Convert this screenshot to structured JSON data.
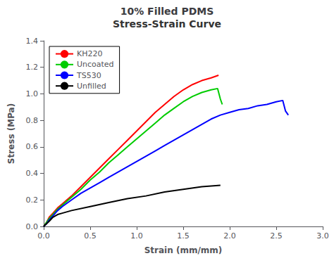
{
  "chart_data": {
    "type": "line",
    "title": "10% Filled PDMS",
    "subtitle": "Stress-Strain Curve",
    "xlabel": "Strain (mm/mm)",
    "ylabel": "Stress (MPa)",
    "xlim": [
      0,
      3.0
    ],
    "ylim": [
      0,
      1.4
    ],
    "xticks": [
      {
        "value": 0,
        "label": "0.0"
      },
      0.5,
      {
        "value": 1,
        "label": "1.0"
      },
      1.5,
      {
        "value": 2,
        "label": "2.0"
      },
      2.5,
      {
        "value": 3,
        "label": "3.0"
      }
    ],
    "yticks": [
      {
        "value": 0,
        "label": "0.0"
      },
      0.2,
      0.4,
      0.6,
      0.8,
      {
        "value": 1,
        "label": "1.0"
      },
      1.2,
      1.4
    ],
    "grid": false,
    "legend": "upper left",
    "series": [
      {
        "name": "KH220",
        "color": "#FF0000",
        "x": [
          0.0,
          0.03,
          0.06,
          0.1,
          0.15,
          0.2,
          0.3,
          0.4,
          0.5,
          0.6,
          0.7,
          0.8,
          0.9,
          1.0,
          1.1,
          1.2,
          1.3,
          1.4,
          1.5,
          1.6,
          1.7,
          1.8,
          1.88
        ],
        "values": [
          0.0,
          0.03,
          0.07,
          0.1,
          0.14,
          0.17,
          0.23,
          0.3,
          0.37,
          0.44,
          0.51,
          0.58,
          0.65,
          0.72,
          0.79,
          0.86,
          0.92,
          0.98,
          1.03,
          1.07,
          1.1,
          1.12,
          1.14
        ]
      },
      {
        "name": "Uncoated",
        "color": "#00CC00",
        "x": [
          0.0,
          0.03,
          0.06,
          0.1,
          0.15,
          0.2,
          0.3,
          0.4,
          0.5,
          0.6,
          0.7,
          0.8,
          0.9,
          1.0,
          1.1,
          1.2,
          1.3,
          1.4,
          1.5,
          1.6,
          1.7,
          1.8,
          1.87,
          1.9,
          1.92
        ],
        "values": [
          0.0,
          0.03,
          0.06,
          0.09,
          0.13,
          0.16,
          0.22,
          0.28,
          0.35,
          0.41,
          0.48,
          0.54,
          0.6,
          0.66,
          0.72,
          0.78,
          0.84,
          0.89,
          0.94,
          0.98,
          1.01,
          1.03,
          1.04,
          0.96,
          0.92
        ]
      },
      {
        "name": "TS530",
        "color": "#0000FF",
        "x": [
          0.0,
          0.03,
          0.06,
          0.1,
          0.15,
          0.2,
          0.3,
          0.4,
          0.5,
          0.6,
          0.7,
          0.8,
          0.9,
          1.0,
          1.1,
          1.2,
          1.3,
          1.4,
          1.5,
          1.6,
          1.7,
          1.8,
          1.9,
          2.0,
          2.1,
          2.2,
          2.3,
          2.4,
          2.5,
          2.57,
          2.6,
          2.63
        ],
        "values": [
          0.0,
          0.02,
          0.05,
          0.08,
          0.12,
          0.15,
          0.2,
          0.25,
          0.29,
          0.33,
          0.37,
          0.41,
          0.45,
          0.49,
          0.53,
          0.57,
          0.61,
          0.65,
          0.69,
          0.73,
          0.77,
          0.81,
          0.84,
          0.86,
          0.88,
          0.89,
          0.91,
          0.92,
          0.94,
          0.95,
          0.87,
          0.84
        ]
      },
      {
        "name": "Unfilled",
        "color": "#000000",
        "x": [
          0.0,
          0.03,
          0.06,
          0.1,
          0.15,
          0.2,
          0.3,
          0.5,
          0.7,
          0.9,
          1.1,
          1.3,
          1.5,
          1.7,
          1.9
        ],
        "values": [
          0.0,
          0.02,
          0.04,
          0.07,
          0.09,
          0.1,
          0.12,
          0.15,
          0.18,
          0.21,
          0.23,
          0.26,
          0.28,
          0.3,
          0.31
        ]
      }
    ]
  }
}
